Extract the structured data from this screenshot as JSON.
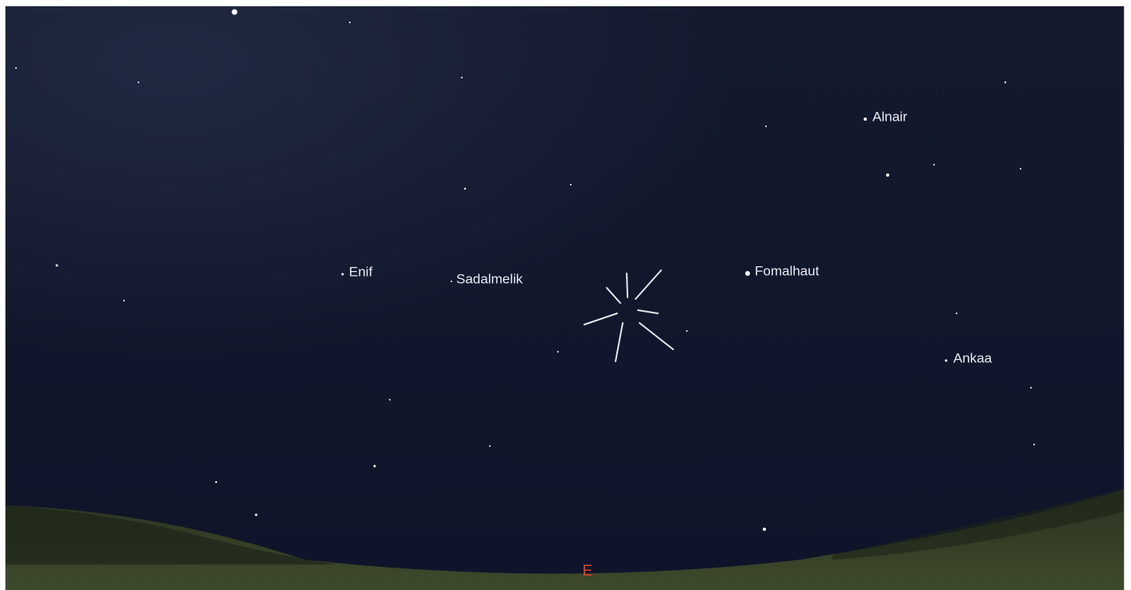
{
  "stars": [
    {
      "label": "Alnair"
    },
    {
      "label": "Enif"
    },
    {
      "label": "Sadalmelik"
    },
    {
      "label": "Fomalhaut"
    },
    {
      "label": "Ankaa"
    }
  ],
  "compass": {
    "label": "E"
  }
}
